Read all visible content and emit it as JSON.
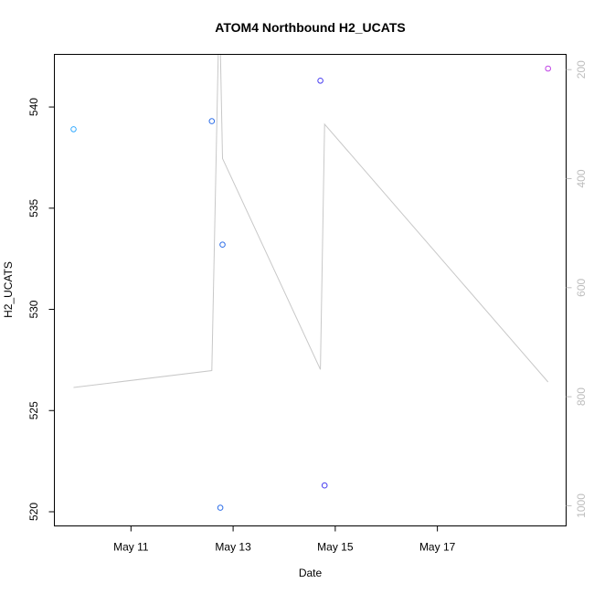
{
  "chart_data": {
    "type": "scatter",
    "title": "ATOM4 Northbound H2_UCATS",
    "xlabel": "Date",
    "ylabel": "H2_UCATS",
    "xlim": [
      "2016-05-09T12:00",
      "2016-05-19T12:30"
    ],
    "ylim": [
      519.3,
      542.6
    ],
    "x_ticks": [
      {
        "x": "2016-05-11",
        "label": "May 11"
      },
      {
        "x": "2016-05-13",
        "label": "May 13"
      },
      {
        "x": "2016-05-15",
        "label": "May 15"
      },
      {
        "x": "2016-05-17",
        "label": "May 17"
      }
    ],
    "y_ticks": [
      520,
      525,
      530,
      535,
      540
    ],
    "y2_axis": {
      "reversed": true,
      "lim": [
        1037,
        172
      ],
      "ticks": [
        200,
        400,
        600,
        800,
        1000
      ],
      "color": "#bdbdbd"
    },
    "points": [
      {
        "x": "2016-05-09T21:00",
        "y": 538.9,
        "color": "#33aaff"
      },
      {
        "x": "2016-05-12T14:00",
        "y": 539.3,
        "color": "#2f6fe8"
      },
      {
        "x": "2016-05-12T18:00",
        "y": 520.2,
        "color": "#2f6fe8"
      },
      {
        "x": "2016-05-12T19:00",
        "y": 533.2,
        "color": "#2f6fe8"
      },
      {
        "x": "2016-05-14T17:00",
        "y": 541.3,
        "color": "#4a3ff0"
      },
      {
        "x": "2016-05-14T19:00",
        "y": 521.3,
        "color": "#4a3ff0"
      },
      {
        "x": "2016-05-19T04:00",
        "y": 541.9,
        "color": "#c044e6"
      }
    ],
    "line_series": {
      "axis": "right",
      "color": "#c8c8c8",
      "points": [
        {
          "x": "2016-05-09T21:00",
          "y": 783
        },
        {
          "x": "2016-05-12T14:00",
          "y": 752
        },
        {
          "x": "2016-05-12T17:00",
          "y": 172
        },
        {
          "x": "2016-05-12T18:00",
          "y": 160
        },
        {
          "x": "2016-05-12T19:00",
          "y": 363
        },
        {
          "x": "2016-05-14T17:00",
          "y": 750
        },
        {
          "x": "2016-05-14T19:00",
          "y": 300
        },
        {
          "x": "2016-05-19T04:00",
          "y": 773
        }
      ]
    }
  }
}
